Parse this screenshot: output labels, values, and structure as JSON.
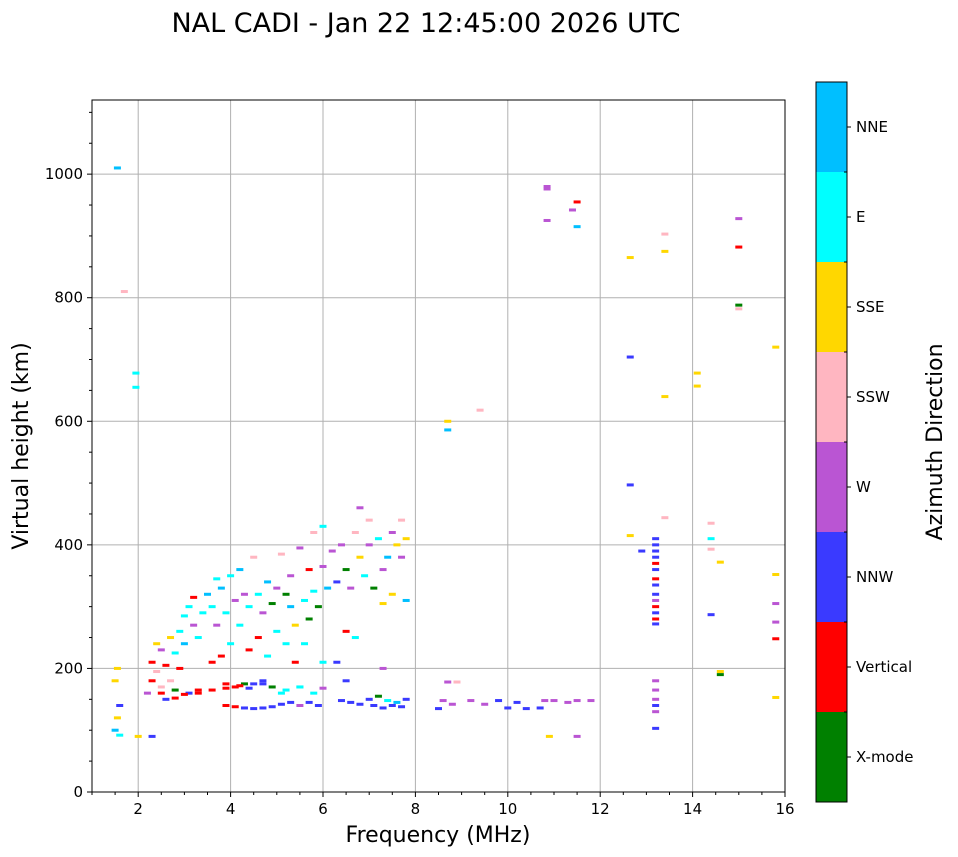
{
  "chart_data": {
    "type": "scatter",
    "title": "NAL CADI - Jan 22 12:45:00 2026 UTC",
    "xlabel": "Frequency (MHz)",
    "ylabel": "Virtual height (km)",
    "xlim": [
      1,
      16
    ],
    "ylim": [
      0,
      1120
    ],
    "xticks": [
      2,
      4,
      6,
      8,
      10,
      12,
      14,
      16
    ],
    "yticks": [
      0,
      200,
      400,
      600,
      800,
      1000
    ],
    "grid": true,
    "colorbar": {
      "label": "Azimuth Direction",
      "categories": [
        {
          "name": "NNE",
          "color": "#00bfff"
        },
        {
          "name": "E",
          "color": "#00ffff"
        },
        {
          "name": "SSE",
          "color": "#ffd700"
        },
        {
          "name": "SSW",
          "color": "#ffb6c1"
        },
        {
          "name": "W",
          "color": "#ba55d3"
        },
        {
          "name": "NNW",
          "color": "#3a3aff"
        },
        {
          "name": "Vertical",
          "color": "#ff0000"
        },
        {
          "name": "X-mode",
          "color": "#008000"
        }
      ]
    },
    "points": [
      [
        1.55,
        1010,
        "NNE"
      ],
      [
        1.7,
        810,
        "SSW"
      ],
      [
        1.95,
        678,
        "E"
      ],
      [
        1.95,
        655,
        "E"
      ],
      [
        1.5,
        100,
        "NNE"
      ],
      [
        1.6,
        92,
        "E"
      ],
      [
        1.55,
        120,
        "SSE"
      ],
      [
        1.6,
        140,
        "NNW"
      ],
      [
        1.5,
        180,
        "SSE"
      ],
      [
        1.55,
        200,
        "SSE"
      ],
      [
        2.0,
        90,
        "SSE"
      ],
      [
        2.3,
        90,
        "NNW"
      ],
      [
        2.2,
        160,
        "W"
      ],
      [
        2.3,
        180,
        "Vertical"
      ],
      [
        2.3,
        210,
        "Vertical"
      ],
      [
        2.4,
        240,
        "SSE"
      ],
      [
        2.4,
        195,
        "SSW"
      ],
      [
        2.5,
        170,
        "SSW"
      ],
      [
        2.5,
        230,
        "W"
      ],
      [
        2.6,
        205,
        "Vertical"
      ],
      [
        2.6,
        150,
        "NNW"
      ],
      [
        2.7,
        180,
        "SSW"
      ],
      [
        2.7,
        250,
        "SSE"
      ],
      [
        2.8,
        225,
        "E"
      ],
      [
        2.8,
        165,
        "X-mode"
      ],
      [
        2.9,
        200,
        "Vertical"
      ],
      [
        2.9,
        260,
        "E"
      ],
      [
        3.0,
        285,
        "E"
      ],
      [
        3.0,
        240,
        "NNE"
      ],
      [
        3.1,
        300,
        "E"
      ],
      [
        3.1,
        160,
        "NNW"
      ],
      [
        3.2,
        270,
        "W"
      ],
      [
        3.2,
        315,
        "Vertical"
      ],
      [
        3.3,
        250,
        "E"
      ],
      [
        3.3,
        165,
        "Vertical"
      ],
      [
        3.4,
        290,
        "E"
      ],
      [
        3.5,
        320,
        "NNE"
      ],
      [
        3.6,
        300,
        "E"
      ],
      [
        3.6,
        210,
        "Vertical"
      ],
      [
        3.7,
        270,
        "W"
      ],
      [
        3.7,
        345,
        "E"
      ],
      [
        3.8,
        220,
        "Vertical"
      ],
      [
        3.8,
        330,
        "NNE"
      ],
      [
        3.9,
        290,
        "E"
      ],
      [
        3.9,
        175,
        "Vertical"
      ],
      [
        4.0,
        350,
        "E"
      ],
      [
        4.0,
        240,
        "E"
      ],
      [
        4.1,
        310,
        "W"
      ],
      [
        4.1,
        170,
        "Vertical"
      ],
      [
        4.2,
        360,
        "NNE"
      ],
      [
        4.2,
        270,
        "E"
      ],
      [
        4.3,
        175,
        "X-mode"
      ],
      [
        4.3,
        320,
        "W"
      ],
      [
        4.4,
        230,
        "Vertical"
      ],
      [
        4.4,
        300,
        "E"
      ],
      [
        4.5,
        380,
        "SSW"
      ],
      [
        4.5,
        175,
        "NNW"
      ],
      [
        4.6,
        320,
        "E"
      ],
      [
        4.6,
        250,
        "Vertical"
      ],
      [
        4.7,
        290,
        "W"
      ],
      [
        4.7,
        180,
        "NNW"
      ],
      [
        4.8,
        340,
        "NNE"
      ],
      [
        4.8,
        220,
        "E"
      ],
      [
        4.9,
        305,
        "X-mode"
      ],
      [
        5.0,
        330,
        "W"
      ],
      [
        5.0,
        260,
        "E"
      ],
      [
        5.1,
        385,
        "SSW"
      ],
      [
        5.1,
        160,
        "E"
      ],
      [
        5.2,
        320,
        "X-mode"
      ],
      [
        5.2,
        240,
        "E"
      ],
      [
        5.3,
        300,
        "NNE"
      ],
      [
        5.3,
        350,
        "W"
      ],
      [
        5.4,
        210,
        "Vertical"
      ],
      [
        5.4,
        270,
        "SSE"
      ],
      [
        5.5,
        395,
        "W"
      ],
      [
        5.5,
        170,
        "E"
      ],
      [
        5.6,
        310,
        "E"
      ],
      [
        5.6,
        240,
        "E"
      ],
      [
        5.7,
        360,
        "Vertical"
      ],
      [
        5.7,
        280,
        "X-mode"
      ],
      [
        5.8,
        325,
        "E"
      ],
      [
        5.8,
        420,
        "SSW"
      ],
      [
        5.9,
        300,
        "X-mode"
      ],
      [
        6.0,
        430,
        "E"
      ],
      [
        6.0,
        365,
        "W"
      ],
      [
        6.0,
        210,
        "E"
      ],
      [
        6.1,
        330,
        "NNE"
      ],
      [
        6.2,
        390,
        "W"
      ],
      [
        6.3,
        340,
        "NNW"
      ],
      [
        6.3,
        210,
        "NNW"
      ],
      [
        6.4,
        400,
        "W"
      ],
      [
        6.5,
        360,
        "X-mode"
      ],
      [
        6.5,
        260,
        "Vertical"
      ],
      [
        6.6,
        330,
        "W"
      ],
      [
        6.7,
        420,
        "SSW"
      ],
      [
        6.7,
        250,
        "E"
      ],
      [
        6.8,
        380,
        "SSE"
      ],
      [
        6.8,
        460,
        "W"
      ],
      [
        6.9,
        350,
        "E"
      ],
      [
        7.0,
        400,
        "W"
      ],
      [
        7.0,
        440,
        "SSW"
      ],
      [
        7.1,
        330,
        "X-mode"
      ],
      [
        7.2,
        410,
        "E"
      ],
      [
        7.3,
        360,
        "W"
      ],
      [
        7.3,
        305,
        "SSE"
      ],
      [
        7.4,
        380,
        "NNE"
      ],
      [
        7.5,
        420,
        "W"
      ],
      [
        7.5,
        320,
        "SSE"
      ],
      [
        7.6,
        400,
        "SSE"
      ],
      [
        7.7,
        440,
        "SSW"
      ],
      [
        7.7,
        380,
        "W"
      ],
      [
        7.8,
        310,
        "NNE"
      ],
      [
        7.8,
        410,
        "SSE"
      ],
      [
        7.3,
        200,
        "W"
      ],
      [
        2.5,
        160,
        "Vertical"
      ],
      [
        2.8,
        152,
        "Vertical"
      ],
      [
        3.0,
        158,
        "Vertical"
      ],
      [
        3.3,
        160,
        "Vertical"
      ],
      [
        3.6,
        165,
        "Vertical"
      ],
      [
        3.9,
        168,
        "Vertical"
      ],
      [
        4.2,
        172,
        "Vertical"
      ],
      [
        4.4,
        168,
        "NNW"
      ],
      [
        4.7,
        175,
        "NNW"
      ],
      [
        4.9,
        170,
        "X-mode"
      ],
      [
        5.2,
        165,
        "E"
      ],
      [
        5.5,
        170,
        "E"
      ],
      [
        5.8,
        160,
        "E"
      ],
      [
        6.0,
        168,
        "W"
      ],
      [
        3.9,
        140,
        "Vertical"
      ],
      [
        4.1,
        138,
        "Vertical"
      ],
      [
        4.3,
        136,
        "NNW"
      ],
      [
        4.5,
        135,
        "NNW"
      ],
      [
        4.7,
        136,
        "NNW"
      ],
      [
        4.9,
        138,
        "NNW"
      ],
      [
        5.1,
        142,
        "NNW"
      ],
      [
        5.3,
        145,
        "NNW"
      ],
      [
        5.5,
        140,
        "W"
      ],
      [
        5.7,
        145,
        "NNW"
      ],
      [
        5.9,
        140,
        "NNW"
      ],
      [
        6.4,
        148,
        "NNW"
      ],
      [
        6.6,
        145,
        "NNW"
      ],
      [
        6.8,
        142,
        "NNW"
      ],
      [
        7.0,
        150,
        "NNW"
      ],
      [
        7.1,
        140,
        "NNW"
      ],
      [
        7.2,
        155,
        "X-mode"
      ],
      [
        7.3,
        136,
        "NNW"
      ],
      [
        7.4,
        148,
        "E"
      ],
      [
        7.5,
        140,
        "NNW"
      ],
      [
        7.6,
        145,
        "NNE"
      ],
      [
        7.7,
        138,
        "NNW"
      ],
      [
        7.8,
        150,
        "NNW"
      ],
      [
        6.5,
        180,
        "NNW"
      ],
      [
        8.6,
        148,
        "W"
      ],
      [
        8.8,
        142,
        "W"
      ],
      [
        8.5,
        135,
        "NNW"
      ],
      [
        8.7,
        178,
        "W"
      ],
      [
        8.9,
        178,
        "SSW"
      ],
      [
        9.2,
        148,
        "W"
      ],
      [
        9.5,
        142,
        "W"
      ],
      [
        9.8,
        148,
        "NNW"
      ],
      [
        10.0,
        136,
        "NNW"
      ],
      [
        10.2,
        145,
        "NNW"
      ],
      [
        10.4,
        135,
        "NNW"
      ],
      [
        10.8,
        148,
        "W"
      ],
      [
        11.0,
        148,
        "W"
      ],
      [
        11.3,
        145,
        "W"
      ],
      [
        11.5,
        148,
        "W"
      ],
      [
        11.8,
        148,
        "W"
      ],
      [
        10.9,
        90,
        "SSE"
      ],
      [
        11.5,
        90,
        "W"
      ],
      [
        10.7,
        136,
        "NNW"
      ],
      [
        8.7,
        600,
        "SSE"
      ],
      [
        8.7,
        586,
        "NNE"
      ],
      [
        9.4,
        618,
        "SSW"
      ],
      [
        10.85,
        980,
        "W"
      ],
      [
        10.85,
        976,
        "W"
      ],
      [
        10.85,
        925,
        "W"
      ],
      [
        11.4,
        942,
        "W"
      ],
      [
        11.5,
        955,
        "Vertical"
      ],
      [
        11.5,
        915,
        "NNE"
      ],
      [
        12.65,
        865,
        "SSE"
      ],
      [
        12.65,
        704,
        "NNW"
      ],
      [
        12.65,
        497,
        "NNW"
      ],
      [
        12.65,
        415,
        "SSE"
      ],
      [
        12.9,
        390,
        "NNW"
      ],
      [
        13.2,
        410,
        "NNW"
      ],
      [
        13.2,
        400,
        "NNW"
      ],
      [
        13.2,
        390,
        "NNW"
      ],
      [
        13.2,
        380,
        "NNW"
      ],
      [
        13.2,
        370,
        "Vertical"
      ],
      [
        13.2,
        360,
        "NNW"
      ],
      [
        13.2,
        345,
        "Vertical"
      ],
      [
        13.2,
        335,
        "NNW"
      ],
      [
        13.2,
        320,
        "NNW"
      ],
      [
        13.2,
        310,
        "W"
      ],
      [
        13.2,
        300,
        "Vertical"
      ],
      [
        13.2,
        290,
        "NNW"
      ],
      [
        13.2,
        280,
        "Vertical"
      ],
      [
        13.2,
        272,
        "NNW"
      ],
      [
        13.2,
        180,
        "W"
      ],
      [
        13.2,
        165,
        "W"
      ],
      [
        13.2,
        150,
        "W"
      ],
      [
        13.2,
        140,
        "NNW"
      ],
      [
        13.2,
        130,
        "W"
      ],
      [
        13.2,
        103,
        "NNW"
      ],
      [
        13.4,
        903,
        "SSW"
      ],
      [
        13.4,
        875,
        "SSE"
      ],
      [
        13.4,
        640,
        "SSE"
      ],
      [
        13.4,
        444,
        "SSW"
      ],
      [
        14.1,
        678,
        "SSE"
      ],
      [
        14.1,
        657,
        "SSE"
      ],
      [
        14.4,
        435,
        "SSW"
      ],
      [
        14.4,
        410,
        "E"
      ],
      [
        14.4,
        393,
        "SSW"
      ],
      [
        14.4,
        287,
        "NNW"
      ],
      [
        14.6,
        372,
        "SSE"
      ],
      [
        14.6,
        195,
        "SSE"
      ],
      [
        14.6,
        190,
        "X-mode"
      ],
      [
        15.0,
        928,
        "W"
      ],
      [
        15.0,
        882,
        "Vertical"
      ],
      [
        15.0,
        788,
        "X-mode"
      ],
      [
        15.0,
        782,
        "SSW"
      ],
      [
        15.8,
        720,
        "SSE"
      ],
      [
        15.8,
        352,
        "SSE"
      ],
      [
        15.8,
        305,
        "W"
      ],
      [
        15.8,
        275,
        "W"
      ],
      [
        15.8,
        248,
        "Vertical"
      ],
      [
        15.8,
        153,
        "SSE"
      ]
    ]
  }
}
